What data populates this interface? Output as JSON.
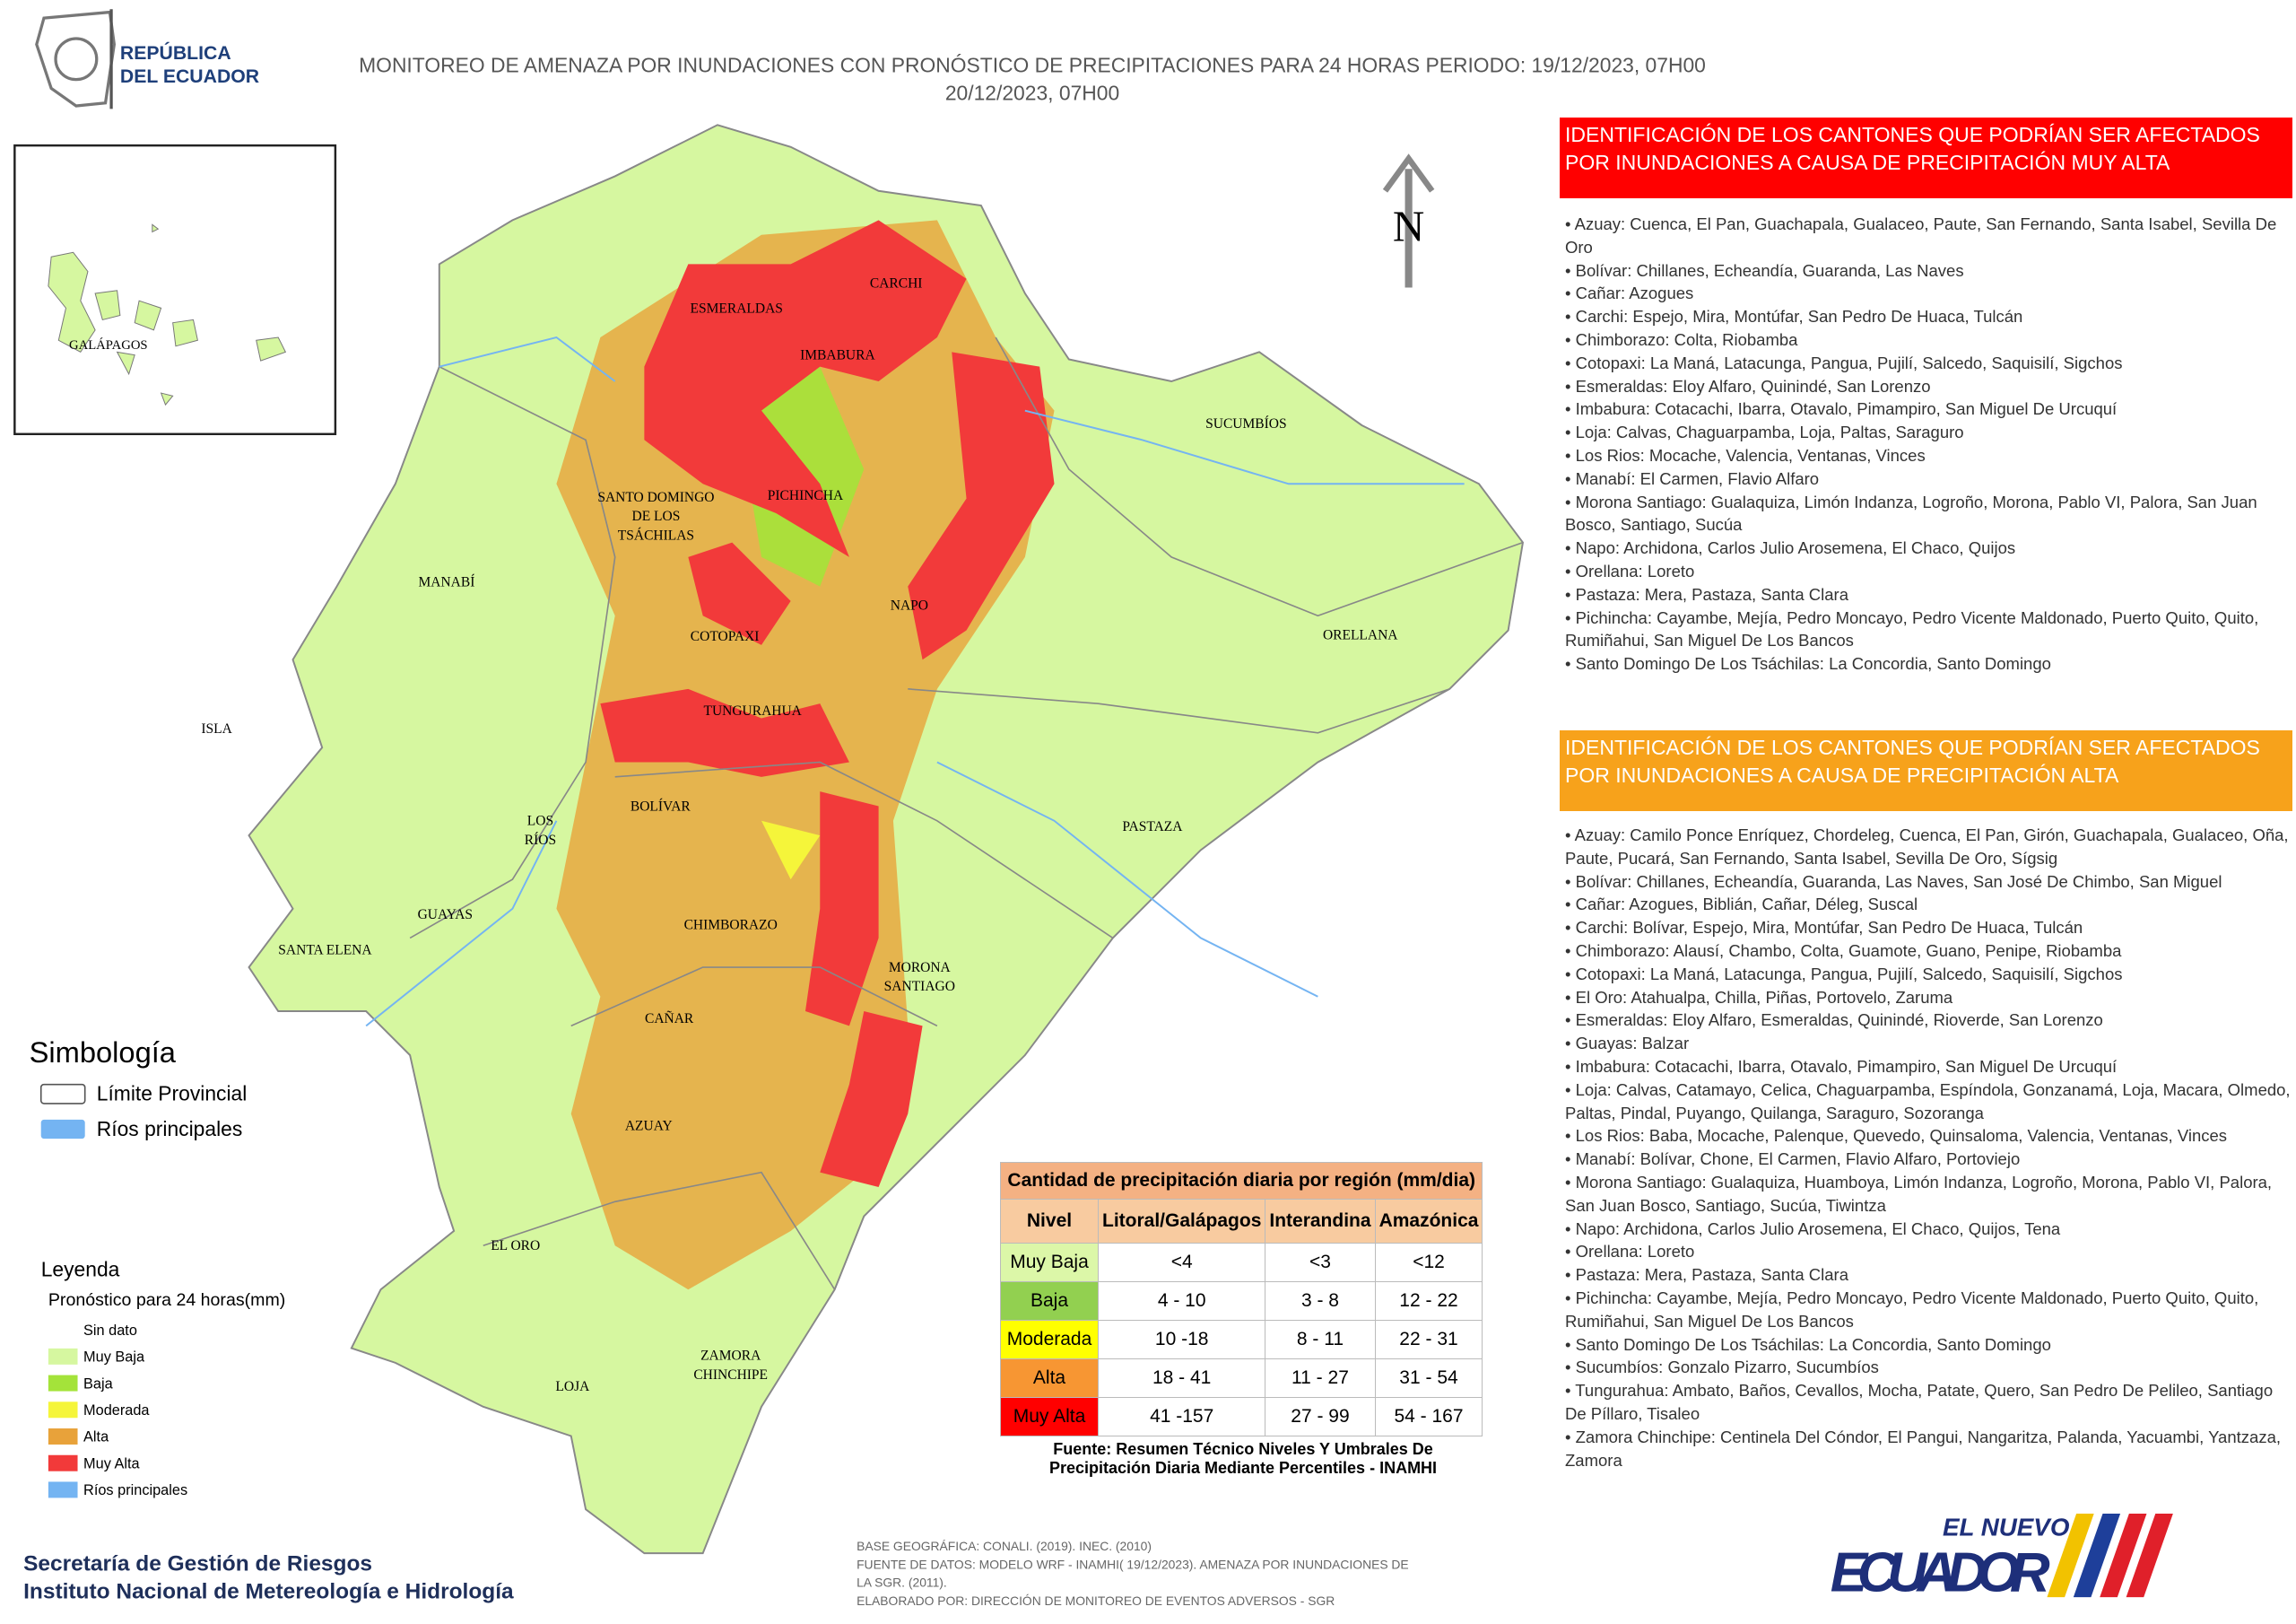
{
  "header": {
    "logo_lines": [
      "REPÚBLICA",
      "DEL ECUADOR"
    ],
    "title_lines": [
      "MONITOREO DE AMENAZA POR INUNDACIONES  CON PRONÓSTICO DE  PRECIPITACIONES PARA 24 HORAS  PERIODO: 19/12/2023, 07H00",
      "20/12/2023, 07H00"
    ]
  },
  "map": {
    "inset_label": "GALÁPAGOS",
    "north": "N",
    "provinces": [
      [
        "ESMERALDAS"
      ],
      [
        "CARCHI"
      ],
      [
        "IMBABURA"
      ],
      [
        "SUCUMBÍOS"
      ],
      [
        "PICHINCHA"
      ],
      [
        "SANTO DOMINGO",
        "DE LOS",
        "TSÁCHILAS"
      ],
      [
        "MANABÍ"
      ],
      [
        "NAPO"
      ],
      [
        "ORELLANA"
      ],
      [
        "COTOPAXI"
      ],
      [
        "ISLA"
      ],
      [
        "TUNGURAHUA"
      ],
      [
        "BOLÍVAR"
      ],
      [
        "LOS",
        "RÍOS"
      ],
      [
        "PASTAZA"
      ],
      [
        "GUAYAS"
      ],
      [
        "CHIMBORAZO"
      ],
      [
        "SANTA ELENA"
      ],
      [
        "MORONA",
        "SANTIAGO"
      ],
      [
        "CAÑAR"
      ],
      [
        "AZUAY"
      ],
      [
        "EL ORO"
      ],
      [
        "ZAMORA",
        "CHINCHIPE"
      ],
      [
        "LOJA"
      ]
    ]
  },
  "panels": [
    {
      "title_lines": [
        "IDENTIFICACIÓN DE LOS CANTONES QUE PODRÍAN SER AFECTADOS",
        "POR INUNDACIONES  A CAUSA DE PRECIPITACIÓN MUY ALTA"
      ],
      "color": "#ff0000",
      "items": [
        "Azuay: Cuenca, El Pan, Guachapala, Gualaceo, Paute, San Fernando, Santa Isabel, Sevilla De Oro",
        "Bolívar: Chillanes, Echeandía, Guaranda, Las Naves",
        "Cañar: Azogues",
        "Carchi: Espejo, Mira, Montúfar, San Pedro De Huaca, Tulcán",
        "Chimborazo: Colta, Riobamba",
        "Cotopaxi: La Maná, Latacunga, Pangua, Pujilí, Salcedo, Saquisilí, Sigchos",
        "Esmeraldas: Eloy Alfaro, Quinindé, San Lorenzo",
        "Imbabura: Cotacachi, Ibarra, Otavalo, Pimampiro, San Miguel De Urcuquí",
        "Loja: Calvas, Chaguarpamba, Loja, Paltas, Saraguro",
        "Los Rios: Mocache, Valencia, Ventanas, Vinces",
        "Manabí: El Carmen, Flavio Alfaro",
        "Morona Santiago: Gualaquiza, Limón Indanza, Logroño, Morona, Pablo VI, Palora, San Juan Bosco, Santiago, Sucúa",
        "Napo: Archidona, Carlos Julio Arosemena, El Chaco, Quijos",
        "Orellana: Loreto",
        "Pastaza: Mera, Pastaza, Santa Clara",
        "Pichincha: Cayambe, Mejía, Pedro Moncayo, Pedro Vicente Maldonado, Puerto Quito, Quito, Rumiñahui, San Miguel De Los Bancos",
        "Santo Domingo De Los Tsáchilas: La Concordia, Santo Domingo"
      ]
    },
    {
      "title_lines": [
        "IDENTIFICACIÓN DE LOS CANTONES QUE  PODRÍAN SER AFECTADOS",
        "POR INUNDACIONES  A CAUSA DE PRECIPITACIÓN  ALTA"
      ],
      "color": "#f7a21b",
      "items": [
        "Azuay: Camilo Ponce Enríquez, Chordeleg, Cuenca, El Pan, Girón, Guachapala, Gualaceo, Oña, Paute, Pucará, San Fernando, Santa Isabel, Sevilla De Oro, Sígsig",
        "Bolívar: Chillanes, Echeandía, Guaranda, Las Naves, San José De Chimbo, San Miguel",
        "Cañar: Azogues, Biblián, Cañar, Déleg, Suscal",
        "Carchi: Bolívar, Espejo, Mira, Montúfar, San Pedro De Huaca, Tulcán",
        "Chimborazo: Alausí, Chambo, Colta, Guamote, Guano, Penipe, Riobamba",
        "Cotopaxi: La Maná, Latacunga, Pangua, Pujilí, Salcedo, Saquisilí, Sigchos",
        "El Oro: Atahualpa, Chilla, Piñas, Portovelo, Zaruma",
        "Esmeraldas: Eloy Alfaro, Esmeraldas, Quinindé, Rioverde, San Lorenzo",
        "Guayas: Balzar",
        "Imbabura: Cotacachi, Ibarra, Otavalo, Pimampiro, San Miguel De Urcuquí",
        "Loja: Calvas, Catamayo, Celica, Chaguarpamba, Espíndola, Gonzanamá, Loja, Macara, Olmedo, Paltas, Pindal, Puyango, Quilanga, Saraguro, Sozoranga",
        "Los Rios: Baba, Mocache, Palenque, Quevedo, Quinsaloma, Valencia, Ventanas, Vinces",
        "Manabí: Bolívar, Chone, El Carmen, Flavio Alfaro, Portoviejo",
        "Morona Santiago: Gualaquiza, Huamboya, Limón Indanza, Logroño, Morona, Pablo VI, Palora, San Juan Bosco, Santiago, Sucúa, Tiwintza",
        "Napo: Archidona, Carlos Julio Arosemena, El Chaco, Quijos, Tena",
        "Orellana: Loreto",
        "Pastaza: Mera, Pastaza, Santa Clara",
        "Pichincha: Cayambe, Mejía, Pedro Moncayo, Pedro Vicente Maldonado, Puerto Quito, Quito, Rumiñahui, San Miguel De Los Bancos",
        "Santo Domingo De Los Tsáchilas: La Concordia, Santo Domingo",
        "Sucumbíos: Gonzalo Pizarro, Sucumbíos",
        "Tungurahua: Ambato, Baños, Cevallos, Mocha, Patate, Quero, San Pedro De Pelileo, Santiago De Píllaro, Tisaleo",
        "Zamora Chinchipe: Centinela Del Cóndor, El Pangui, Nangaritza, Palanda, Yacuambi, Yantzaza, Zamora"
      ]
    }
  ],
  "symbology": {
    "title": "Simbología",
    "items": [
      {
        "label": "Límite Provincial",
        "color": "#ffffff"
      },
      {
        "label": "Ríos principales",
        "color": "#74b4f2"
      }
    ]
  },
  "legend": {
    "title": "Leyenda",
    "subtitle": "Pronóstico para 24 horas(mm)",
    "items": [
      {
        "label": "Sin dato",
        "color": "#ffffff"
      },
      {
        "label": "Muy Baja",
        "color": "#d6f7a0"
      },
      {
        "label": "Baja",
        "color": "#a4e33a"
      },
      {
        "label": "Moderada",
        "color": "#f5f53a"
      },
      {
        "label": "Alta",
        "color": "#e8a23a"
      },
      {
        "label": "Muy Alta",
        "color": "#f23a3a"
      },
      {
        "label": "Ríos principales",
        "color": "#74b4f2"
      }
    ]
  },
  "table": {
    "title": "Cantidad de precipitación diaria por región (mm/dia)",
    "headers": [
      "Nivel",
      "Litoral/Galápagos",
      "Interandina",
      "Amazónica"
    ],
    "rows": [
      [
        "Muy Baja",
        "<4",
        "<3",
        "<12"
      ],
      [
        "Baja",
        "4 - 10",
        "3 - 8",
        "12 - 22"
      ],
      [
        "Moderada",
        "10 -18",
        "8 - 11",
        "22 - 31"
      ],
      [
        "Alta",
        "18 - 41",
        "11 - 27",
        "31 - 54"
      ],
      [
        "Muy Alta",
        "41 -157",
        "27 - 99",
        "54 - 167"
      ]
    ],
    "level_colors": [
      "#dcf7a8",
      "#92d050",
      "#ffff00",
      "#f79633",
      "#ff0000"
    ],
    "source_lines": [
      "Fuente: Resumen Técnico Niveles Y Umbrales De",
      "Precipitación Diaria Mediante Percentiles - INAMHI"
    ]
  },
  "footer": {
    "institutions": [
      "Secretaría de Gestión de Riesgos",
      "Instituto Nacional de Metereología e Hidrología"
    ],
    "credits": [
      "BASE GEOGRÁFICA: CONALI. (2019). INEC. (2010)",
      "FUENTE DE DATOS: MODELO WRF - INAMHI( 19/12/2023).  AMENAZA POR INUNDACIONES DE",
      "LA SGR. (2011).",
      "ELABORADO POR: DIRECCIÓN DE MONITOREO DE EVENTOS ADVERSOS - SGR"
    ],
    "brand": [
      "EL NUEVO",
      "ECUADOR"
    ]
  }
}
